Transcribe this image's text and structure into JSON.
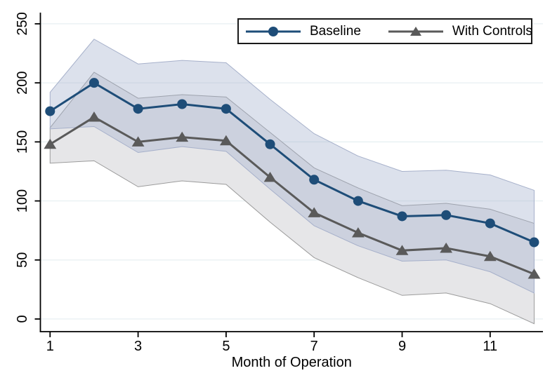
{
  "figure": {
    "legend": {
      "items": [
        {
          "label": "Baseline",
          "marker": "circle"
        },
        {
          "label": "With Controls",
          "marker": "triangle"
        }
      ]
    },
    "xlabel": "Month of Operation"
  },
  "chart_data": {
    "type": "line",
    "title": "",
    "xlabel": "Month of Operation",
    "ylabel": "",
    "x": [
      1,
      2,
      3,
      4,
      5,
      6,
      7,
      8,
      9,
      10,
      11,
      12
    ],
    "series": [
      {
        "name": "Baseline",
        "marker": "circle",
        "color": "#1e4d78",
        "values": [
          176,
          200,
          178,
          182,
          178,
          148,
          118,
          100,
          87,
          88,
          81,
          65
        ],
        "ci_upper": [
          192,
          237,
          216,
          219,
          217,
          186,
          157,
          138,
          125,
          126,
          122,
          109
        ],
        "ci_lower": [
          161,
          163,
          141,
          146,
          142,
          110,
          79,
          62,
          49,
          50,
          40,
          22
        ],
        "band_fill": "rgba(163,175,205,0.38)",
        "band_stroke": "#a6b0ca"
      },
      {
        "name": "With Controls",
        "marker": "triangle",
        "color": "#5a5a5a",
        "values": [
          148,
          171,
          150,
          154,
          151,
          120,
          90,
          73,
          58,
          60,
          53,
          38
        ],
        "ci_upper": [
          162,
          209,
          187,
          190,
          188,
          158,
          128,
          111,
          96,
          98,
          93,
          81
        ],
        "ci_lower": [
          132,
          134,
          112,
          117,
          114,
          82,
          52,
          35,
          20,
          22,
          13,
          -4
        ],
        "band_fill": "#e6e6e8",
        "band_stroke": "#9b9b9b"
      }
    ],
    "x_ticks": [
      1,
      3,
      5,
      7,
      9,
      11
    ],
    "y_ticks": [
      0,
      50,
      100,
      150,
      200,
      250
    ],
    "xlim": [
      0.78,
      12.2
    ],
    "ylim": [
      -10.7,
      258.3
    ],
    "grid": true,
    "gridline_color": "#e9f1f3",
    "axis_color": "#000000",
    "legend_position": "top-right"
  }
}
